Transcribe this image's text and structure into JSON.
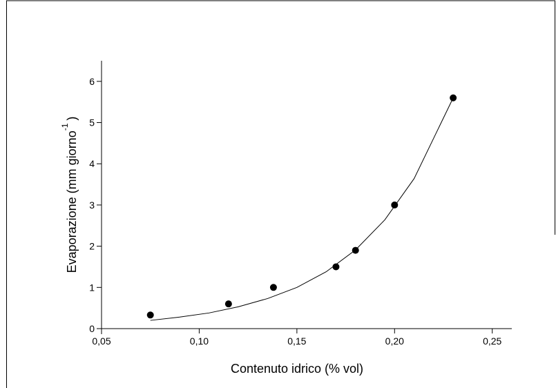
{
  "chart_data": {
    "type": "scatter",
    "x_label": "Contenuto idrico (% vol)",
    "y_label": "Evaporazione (mm giorno",
    "y_label_superscript": "-1",
    "y_label_end": ")",
    "series": [
      {
        "style": "markers",
        "color": "#000000",
        "x": [
          0.075,
          0.115,
          0.138,
          0.17,
          0.18,
          0.2,
          0.23
        ],
        "values": [
          0.33,
          0.6,
          1.0,
          1.5,
          1.9,
          3.0,
          5.6
        ]
      },
      {
        "style": "line",
        "color": "#000000",
        "x": [
          0.075,
          0.09,
          0.105,
          0.12,
          0.135,
          0.15,
          0.165,
          0.18,
          0.195,
          0.21,
          0.23
        ],
        "values": [
          0.2,
          0.28,
          0.38,
          0.53,
          0.73,
          1.0,
          1.38,
          1.91,
          2.64,
          3.64,
          5.6
        ]
      }
    ],
    "xlim": [
      0.05,
      0.26
    ],
    "xticks": [
      {
        "value": 0.05,
        "label": "0,05"
      },
      {
        "value": 0.1,
        "label": "0,10"
      },
      {
        "value": 0.15,
        "label": "0,15"
      },
      {
        "value": 0.2,
        "label": "0,20"
      },
      {
        "value": 0.25,
        "label": "0,25"
      }
    ],
    "ylim": [
      0,
      6.5
    ],
    "yticks": [
      0,
      1,
      2,
      3,
      4,
      5,
      6
    ],
    "grid": false
  }
}
